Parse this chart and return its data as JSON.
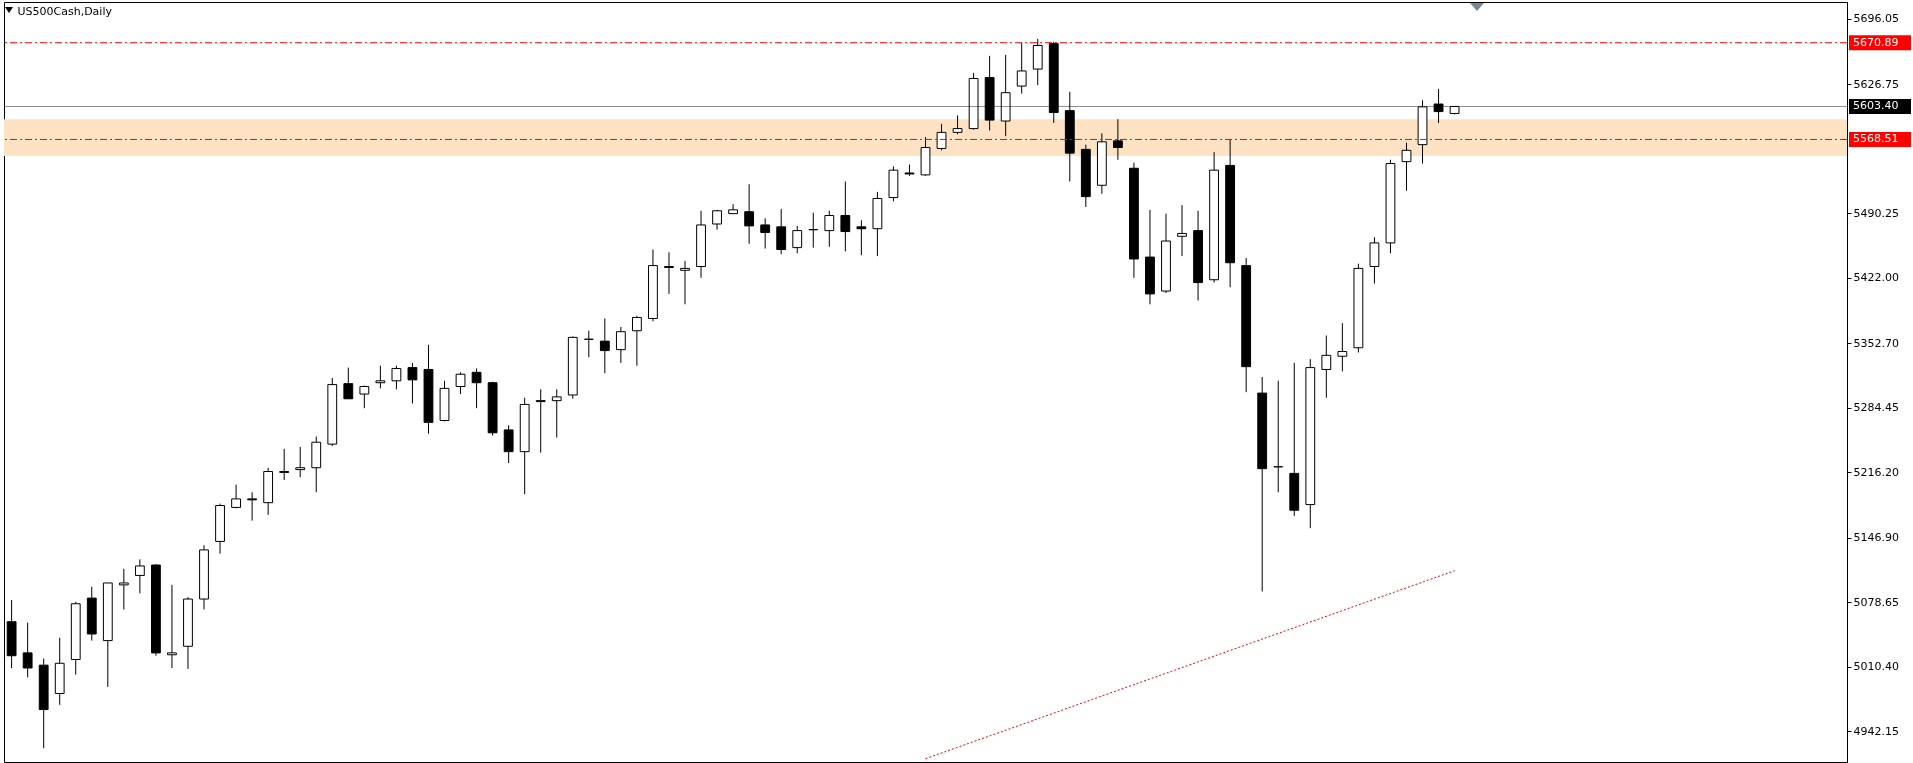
{
  "chart_data": {
    "type": "candlestick",
    "title": "US500Cash,Daily",
    "categories": [
      null,
      null,
      null,
      null,
      null,
      null,
      null,
      null,
      null,
      null,
      null,
      null,
      null,
      null,
      null,
      null,
      null,
      null,
      null,
      null,
      null,
      null,
      null,
      null,
      null,
      null,
      null,
      null,
      null,
      null,
      null,
      null,
      null,
      null,
      null,
      null,
      null,
      null,
      null,
      null,
      null,
      null,
      null,
      null,
      null,
      null,
      null,
      null,
      null,
      null,
      null,
      null,
      null,
      null,
      null,
      null,
      null,
      null,
      null,
      null,
      null,
      null,
      null,
      null,
      null,
      null,
      null,
      null,
      null,
      null,
      null,
      null,
      null,
      null,
      null,
      null,
      null,
      null,
      null,
      null,
      null,
      null,
      null,
      null,
      null,
      null,
      null,
      null,
      null,
      null,
      null,
      null,
      null,
      null,
      null,
      null,
      null,
      null,
      null,
      null,
      null,
      null,
      null,
      null,
      null,
      null,
      null,
      null,
      null,
      null,
      null,
      null,
      null,
      null,
      null
    ],
    "ohlc": [
      [
        5058,
        5081,
        5009,
        5022
      ],
      [
        5025,
        5057,
        4999,
        5009
      ],
      [
        5012,
        5019,
        4924,
        4965
      ],
      [
        4982,
        5041,
        4970,
        5014
      ],
      [
        5018,
        5079,
        5002,
        5077
      ],
      [
        5083,
        5095,
        5038,
        5045
      ],
      [
        5038,
        5099,
        4989,
        5099
      ],
      [
        5097,
        5114,
        5071,
        5099
      ],
      [
        5107,
        5124,
        5088,
        5117
      ],
      [
        5118,
        5119,
        5022,
        5025
      ],
      [
        5023,
        5097,
        5009,
        5025
      ],
      [
        5032,
        5084,
        5008,
        5082
      ],
      [
        5082,
        5139,
        5071,
        5134
      ],
      [
        5143,
        5183,
        5130,
        5181
      ],
      [
        5179,
        5203,
        5178,
        5188
      ],
      [
        5188,
        5195,
        5165,
        5187
      ],
      [
        5184,
        5221,
        5171,
        5217
      ],
      [
        5217,
        5241,
        5208,
        5216
      ],
      [
        5219,
        5243,
        5211,
        5221
      ],
      [
        5221,
        5254,
        5195,
        5248
      ],
      [
        5246,
        5316,
        5244,
        5309
      ],
      [
        5310,
        5327,
        5294,
        5294
      ],
      [
        5299,
        5308,
        5284,
        5307
      ],
      [
        5311,
        5329,
        5305,
        5313
      ],
      [
        5313,
        5329,
        5304,
        5326
      ],
      [
        5327,
        5332,
        5289,
        5314
      ],
      [
        5325,
        5351,
        5257,
        5269
      ],
      [
        5271,
        5313,
        5270,
        5305
      ],
      [
        5307,
        5322,
        5299,
        5320
      ],
      [
        5322,
        5326,
        5284,
        5311
      ],
      [
        5311,
        5312,
        5255,
        5258
      ],
      [
        5261,
        5266,
        5226,
        5238
      ],
      [
        5238,
        5295,
        5193,
        5288
      ],
      [
        5292,
        5304,
        5237,
        5291
      ],
      [
        5292,
        5304,
        5253,
        5296
      ],
      [
        5298,
        5360,
        5294,
        5359
      ],
      [
        5357,
        5366,
        5338,
        5357
      ],
      [
        5355,
        5379,
        5321,
        5345
      ],
      [
        5346,
        5370,
        5332,
        5365
      ],
      [
        5366,
        5382,
        5329,
        5380
      ],
      [
        5379,
        5452,
        5376,
        5435
      ],
      [
        5434,
        5449,
        5405,
        5433
      ],
      [
        5430,
        5440,
        5394,
        5432
      ],
      [
        5434,
        5493,
        5422,
        5478
      ],
      [
        5479,
        5494,
        5473,
        5493
      ],
      [
        5490,
        5500,
        5490,
        5494
      ],
      [
        5492,
        5521,
        5458,
        5477
      ],
      [
        5478,
        5485,
        5453,
        5470
      ],
      [
        5476,
        5495,
        5447,
        5452
      ],
      [
        5454,
        5477,
        5448,
        5472
      ],
      [
        5473,
        5491,
        5454,
        5473
      ],
      [
        5472,
        5493,
        5455,
        5488
      ],
      [
        5488,
        5524,
        5450,
        5471
      ],
      [
        5476,
        5483,
        5446,
        5474
      ],
      [
        5474,
        5513,
        5445,
        5506
      ],
      [
        5507,
        5540,
        5503,
        5536
      ],
      [
        5533,
        5542,
        5530,
        5532
      ],
      [
        5531,
        5571,
        5530,
        5560
      ],
      [
        5559,
        5585,
        5557,
        5576
      ],
      [
        5576,
        5594,
        5574,
        5580
      ],
      [
        5580,
        5639,
        5579,
        5633
      ],
      [
        5634,
        5657,
        5578,
        5589
      ],
      [
        5588,
        5658,
        5572,
        5618
      ],
      [
        5625,
        5671,
        5617,
        5641
      ],
      [
        5643,
        5675,
        5626,
        5668
      ],
      [
        5670,
        5672,
        5586,
        5597
      ],
      [
        5599,
        5619,
        5524,
        5554
      ],
      [
        5558,
        5563,
        5497,
        5508
      ],
      [
        5520,
        5575,
        5511,
        5566
      ],
      [
        5567,
        5590,
        5547,
        5560
      ],
      [
        5538,
        5544,
        5422,
        5442
      ],
      [
        5444,
        5494,
        5394,
        5405
      ],
      [
        5408,
        5490,
        5406,
        5461
      ],
      [
        5466,
        5499,
        5445,
        5469
      ],
      [
        5472,
        5493,
        5398,
        5417
      ],
      [
        5420,
        5555,
        5417,
        5536
      ],
      [
        5541,
        5568,
        5412,
        5438
      ],
      [
        5435,
        5443,
        5301,
        5328
      ],
      [
        5300,
        5317,
        5090,
        5220
      ],
      [
        5222,
        5313,
        5195,
        5222
      ],
      [
        5215,
        5332,
        5170,
        5176
      ],
      [
        5182,
        5336,
        5157,
        5327
      ],
      [
        5325,
        5361,
        5295,
        5340
      ],
      [
        5339,
        5374,
        5323,
        5344
      ],
      [
        5348,
        5437,
        5343,
        5432
      ],
      [
        5434,
        5465,
        5416,
        5459
      ],
      [
        5459,
        5547,
        5448,
        5543
      ],
      [
        5545,
        5565,
        5514,
        5557
      ],
      [
        5563,
        5610,
        5543,
        5603
      ],
      [
        5606,
        5622,
        5586,
        5598
      ],
      [
        5596,
        5604,
        5595,
        5603.4
      ],
      null,
      null,
      null,
      null,
      null,
      null,
      null,
      null,
      null,
      null,
      null,
      null,
      null,
      null,
      null,
      null,
      null,
      null,
      null,
      null,
      null,
      null,
      null,
      null
    ],
    "series": [
      {
        "type": "line",
        "color": "#ff0000",
        "line_style": "dotted",
        "values": [
          null,
          null,
          null,
          null,
          null,
          null,
          null,
          null,
          null,
          null,
          null,
          null,
          null,
          null,
          null,
          null,
          null,
          null,
          null,
          null,
          null,
          null,
          null,
          null,
          null,
          null,
          null,
          null,
          null,
          null,
          null,
          null,
          null,
          null,
          null,
          null,
          null,
          null,
          null,
          null,
          null,
          null,
          null,
          null,
          null,
          null,
          null,
          null,
          null,
          null,
          null,
          null,
          null,
          null,
          null,
          null,
          null,
          4913,
          null,
          null,
          null,
          null,
          null,
          null,
          null,
          null,
          null,
          null,
          null,
          null,
          null,
          null,
          null,
          null,
          null,
          null,
          null,
          null,
          null,
          null,
          null,
          null,
          null,
          null,
          null,
          null,
          null,
          null,
          null,
          null,
          5112,
          null,
          null,
          null,
          null,
          null,
          null,
          null,
          null,
          null,
          null,
          null,
          null,
          null,
          null,
          null,
          null,
          null,
          null,
          null,
          null,
          null,
          null,
          null,
          null
        ]
      }
    ],
    "ylim": [
      4909.5,
      5714
    ],
    "yticks": [
      5696.05,
      5626.75,
      5490.25,
      {
        "value": 5422,
        "label": "5422.00"
      },
      {
        "value": 5352.7,
        "label": "5352.70"
      },
      5284.45,
      {
        "value": 5216.2,
        "label": "5216.20"
      },
      {
        "value": 5146.9,
        "label": "5146.90"
      },
      5078.65,
      {
        "value": 5010.4,
        "label": "5010.40"
      },
      4942.15
    ],
    "tick_labels": "y",
    "grid": false,
    "ref_lines": [
      {
        "axis": "y",
        "value": 5670.89,
        "label": "5670.89",
        "color": "#ff0000",
        "line_style": "dashed"
      },
      {
        "axis": "y",
        "value": 5603.4,
        "label": "5603.40",
        "color": "#000000",
        "line_style": "solid"
      },
      {
        "axis": "y",
        "value": 5568.51,
        "label": "5568.51",
        "color": "#ff0000",
        "line_style": "dashed"
      }
    ],
    "bands": [
      {
        "axis": "y",
        "from": 5551,
        "to": 5590,
        "color": "#fde3c4"
      }
    ]
  }
}
